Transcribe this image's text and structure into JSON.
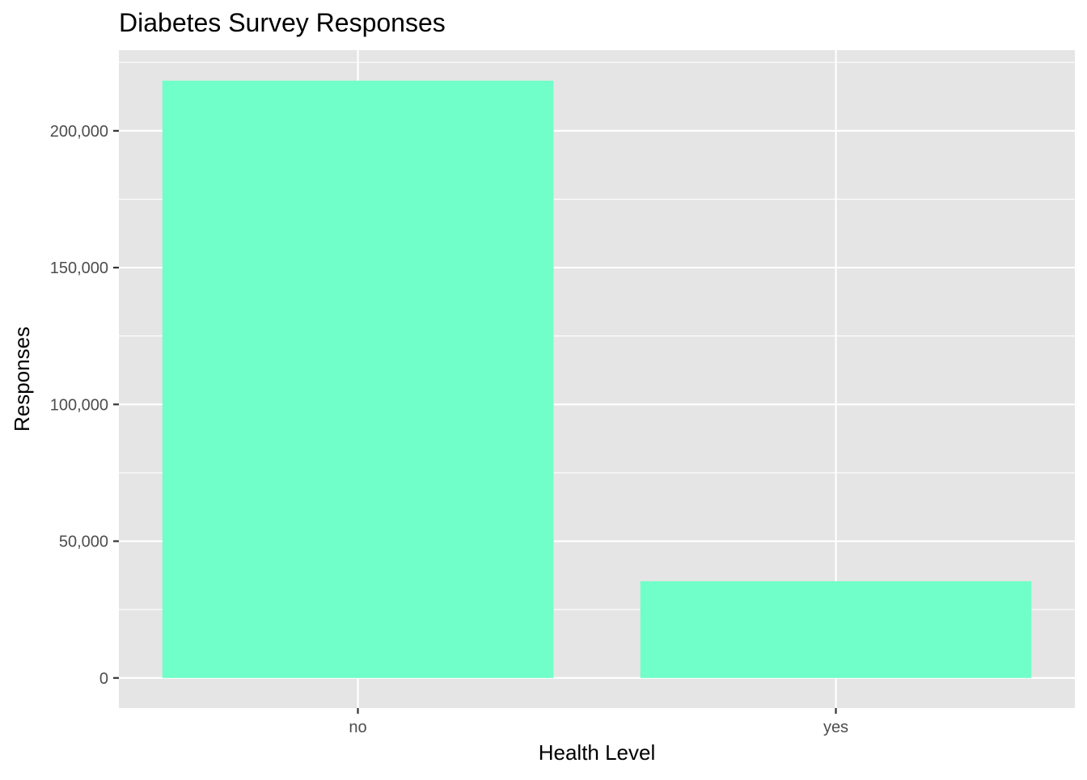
{
  "chart_data": {
    "type": "bar",
    "title": "Diabetes Survey Responses",
    "xlabel": "Health Level",
    "ylabel": "Responses",
    "categories": [
      "no",
      "yes"
    ],
    "values": [
      218334,
      35346
    ],
    "ylim": [
      -11000,
      229500
    ],
    "y_ticks": [
      0,
      50000,
      100000,
      150000,
      200000
    ],
    "y_tick_labels": [
      "0",
      "50,000",
      "100,000",
      "150,000",
      "200,000"
    ],
    "y_minor_ticks": [
      25000,
      75000,
      125000,
      175000,
      225000
    ],
    "bar_color": "#70ffc8",
    "panel_background": "#e5e5e5",
    "gridline_color": "#ffffff",
    "legend": "none",
    "grid": true
  }
}
